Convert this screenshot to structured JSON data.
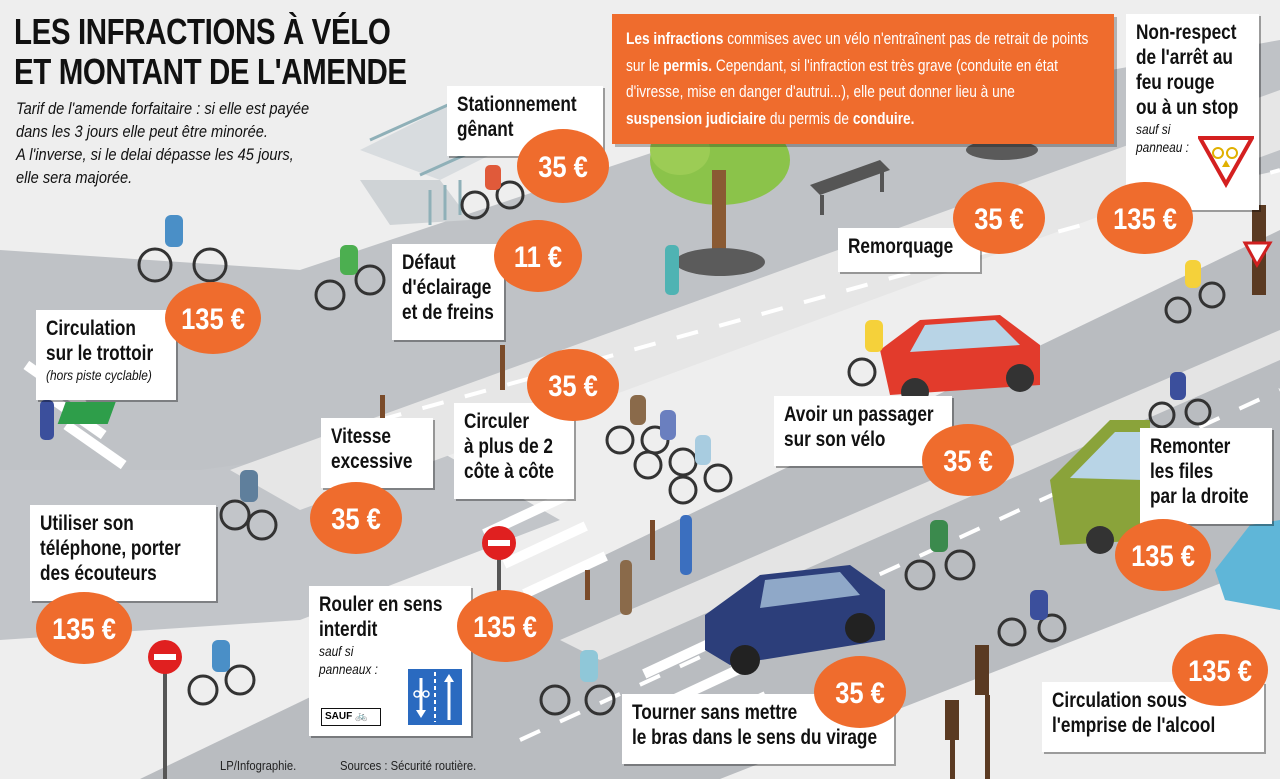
{
  "header": {
    "title_line1": "LES INFRACTIONS À VÉLO",
    "title_line2": "ET MONTANT DE L'AMENDE",
    "subtitle_lines": [
      "Tarif de l'amende forfaitaire : si elle est payée",
      "dans les 3 jours elle peut être minorée.",
      "A l'inverse, si le delai dépasse les 45 jours,",
      "elle sera majorée."
    ]
  },
  "info_box": {
    "part1_bold": "Les infractions",
    "part2": " commises avec un vélo n'entraînent pas de retrait de points sur le ",
    "part3_bold": "permis.",
    "part4": " Cependant, si l'infraction est très grave (conduite en état d'ivresse,  mise en danger d'autrui...), elle peut donner lieu à une ",
    "part5_bold": "suspension judiciaire",
    "part6": " du permis de ",
    "part7_bold": "conduire."
  },
  "infractions": {
    "stationnement": {
      "l1": "Stationnement",
      "l2": "gênant",
      "fine": "35 €"
    },
    "eclairage": {
      "l1": "Défaut",
      "l2": "d'éclairage",
      "l3": "et de freins",
      "fine": "11 €"
    },
    "trottoir": {
      "l1": "Circulation",
      "l2": "sur le trottoir",
      "note": "(hors piste cyclable)",
      "fine": "135 €"
    },
    "remorquage": {
      "l1": "Remorquage",
      "fine": "35 €"
    },
    "feu_rouge": {
      "l1": "Non-respect",
      "l2": "de l'arrêt au",
      "l3": "feu rouge",
      "l4": "ou à un stop",
      "note1": "sauf si",
      "note2": "panneau :",
      "fine": "135 €"
    },
    "cote_a_cote": {
      "l1": "Circuler",
      "l2": "à plus de 2",
      "l3": "côte à côte",
      "fine": "35 €"
    },
    "vitesse": {
      "l1": "Vitesse",
      "l2": "excessive",
      "fine": "35 €"
    },
    "passager": {
      "l1": "Avoir un passager",
      "l2": "sur son vélo",
      "fine": "35 €"
    },
    "files": {
      "l1": "Remonter",
      "l2": "les files",
      "l3": "par la droite",
      "fine": "135 €"
    },
    "telephone": {
      "l1": "Utiliser son",
      "l2": "téléphone, porter",
      "l3": "des écouteurs",
      "fine": "135 €"
    },
    "sens_interdit": {
      "l1": "Rouler en sens",
      "l2": "interdit",
      "note1": "sauf si",
      "note2": "panneaux :",
      "sign_text": "SAUF",
      "fine": "135 €"
    },
    "bras": {
      "l1": "Tourner sans mettre",
      "l2": "le bras dans le sens du virage",
      "fine": "35 €"
    },
    "alcool": {
      "l1": "Circulation sous",
      "l2": "l'emprise de l'alcool",
      "fine": "135 €"
    }
  },
  "footer": {
    "credit": "LP/Infographie.",
    "sources": "Sources : Sécurité routière."
  },
  "colors": {
    "orange": "#ef6c2d",
    "road": "#b9bcc0",
    "sidewalk": "#e3e3e3",
    "red_car": "#e23b2c",
    "blue_car": "#2c3e7a",
    "green_car": "#8aa33a",
    "bike_lane_green": "#2e9e4a"
  }
}
